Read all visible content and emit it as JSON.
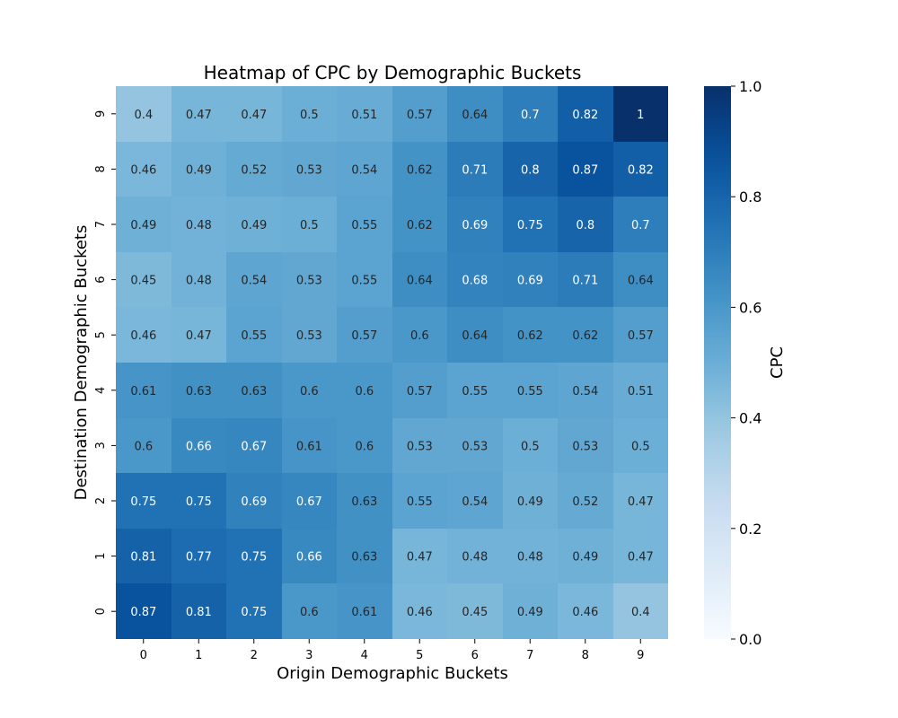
{
  "chart_data": {
    "type": "heatmap",
    "title": "Heatmap of CPC by Demographic Buckets",
    "xlabel": "Origin Demographic Buckets",
    "ylabel": "Destination Demographic Buckets",
    "x_categories": [
      "0",
      "1",
      "2",
      "3",
      "4",
      "5",
      "6",
      "7",
      "8",
      "9"
    ],
    "y_categories": [
      "9",
      "8",
      "7",
      "6",
      "5",
      "4",
      "3",
      "2",
      "1",
      "0"
    ],
    "values": [
      [
        0.4,
        0.47,
        0.47,
        0.5,
        0.51,
        0.57,
        0.64,
        0.7,
        0.82,
        1
      ],
      [
        0.46,
        0.49,
        0.52,
        0.53,
        0.54,
        0.62,
        0.71,
        0.8,
        0.87,
        0.82
      ],
      [
        0.49,
        0.48,
        0.49,
        0.5,
        0.55,
        0.62,
        0.69,
        0.75,
        0.8,
        0.7
      ],
      [
        0.45,
        0.48,
        0.54,
        0.53,
        0.55,
        0.64,
        0.68,
        0.69,
        0.71,
        0.64
      ],
      [
        0.46,
        0.47,
        0.55,
        0.53,
        0.57,
        0.6,
        0.64,
        0.62,
        0.62,
        0.57
      ],
      [
        0.61,
        0.63,
        0.63,
        0.6,
        0.6,
        0.57,
        0.55,
        0.55,
        0.54,
        0.51
      ],
      [
        0.6,
        0.66,
        0.67,
        0.61,
        0.6,
        0.53,
        0.53,
        0.5,
        0.53,
        0.5
      ],
      [
        0.75,
        0.75,
        0.69,
        0.67,
        0.63,
        0.55,
        0.54,
        0.49,
        0.52,
        0.47
      ],
      [
        0.81,
        0.77,
        0.75,
        0.66,
        0.63,
        0.47,
        0.48,
        0.48,
        0.49,
        0.47
      ],
      [
        0.87,
        0.81,
        0.75,
        0.6,
        0.61,
        0.46,
        0.45,
        0.49,
        0.46,
        0.4
      ]
    ],
    "colorbar": {
      "label": "CPC",
      "range": [
        0.0,
        1.0
      ],
      "ticks": [
        "0.0",
        "0.2",
        "0.4",
        "0.6",
        "0.8",
        "1.0"
      ],
      "colormap": "Blues",
      "color_low": "#f7fbff",
      "color_high": "#08306b"
    },
    "annotations": true,
    "grid": false
  }
}
